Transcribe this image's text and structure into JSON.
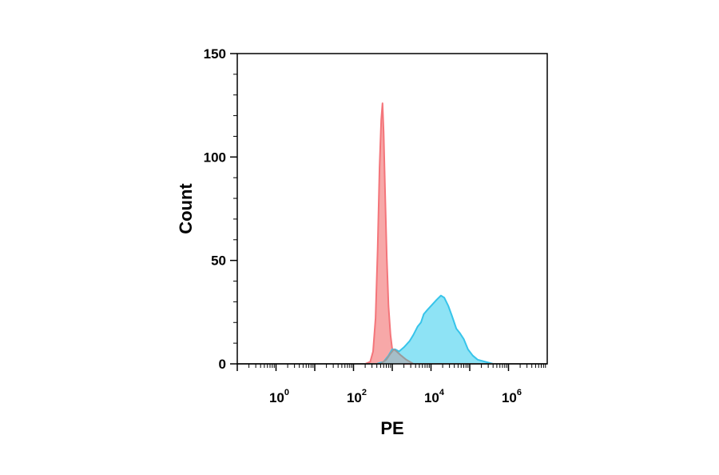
{
  "chart_data": {
    "type": "area",
    "xlabel": "PE",
    "ylabel": "Count",
    "xscale": "log",
    "xlim": [
      0.1,
      10000000
    ],
    "ylim": [
      0,
      150
    ],
    "y_ticks": [
      "0",
      "50",
      "100",
      "150"
    ],
    "x_ticks": [
      {
        "base": "10",
        "exp": "0",
        "value": 1
      },
      {
        "base": "10",
        "exp": "2",
        "value": 100
      },
      {
        "base": "10",
        "exp": "4",
        "value": 10000
      },
      {
        "base": "10",
        "exp": "6",
        "value": 1000000
      }
    ],
    "series": [
      {
        "color": "#f4757a",
        "fill": "#f7a8a8",
        "points": [
          [
            0.1,
            0
          ],
          [
            200,
            0
          ],
          [
            270,
            1
          ],
          [
            320,
            6
          ],
          [
            370,
            22
          ],
          [
            420,
            55
          ],
          [
            470,
            95
          ],
          [
            520,
            118
          ],
          [
            560,
            126
          ],
          [
            600,
            112
          ],
          [
            650,
            85
          ],
          [
            720,
            52
          ],
          [
            800,
            28
          ],
          [
            900,
            14
          ],
          [
            1000,
            7
          ],
          [
            1200,
            3
          ],
          [
            1500,
            1
          ],
          [
            2000,
            0
          ],
          [
            10000000,
            0
          ]
        ]
      },
      {
        "color": "#37c4ea",
        "fill": "#8ee3f5",
        "points": [
          [
            0.1,
            0
          ],
          [
            400,
            0
          ],
          [
            600,
            1
          ],
          [
            800,
            4
          ],
          [
            1000,
            7
          ],
          [
            1200,
            7
          ],
          [
            1500,
            6
          ],
          [
            2000,
            8
          ],
          [
            2800,
            11
          ],
          [
            3500,
            14
          ],
          [
            4500,
            18
          ],
          [
            5500,
            20
          ],
          [
            6500,
            24
          ],
          [
            8000,
            26
          ],
          [
            10000,
            28
          ],
          [
            14000,
            31
          ],
          [
            18000,
            33
          ],
          [
            22000,
            32
          ],
          [
            28000,
            28
          ],
          [
            35000,
            23
          ],
          [
            45000,
            17
          ],
          [
            55000,
            15
          ],
          [
            70000,
            12
          ],
          [
            90000,
            7
          ],
          [
            120000,
            4
          ],
          [
            160000,
            2
          ],
          [
            250000,
            1
          ],
          [
            400000,
            0
          ],
          [
            10000000,
            0
          ]
        ]
      },
      {
        "color": "#9a9a9a",
        "fill": "#a9b7c0",
        "points": [
          [
            0.1,
            0
          ],
          [
            500,
            0
          ],
          [
            700,
            2
          ],
          [
            900,
            5
          ],
          [
            1100,
            7
          ],
          [
            1300,
            6
          ],
          [
            1700,
            4
          ],
          [
            2300,
            2
          ],
          [
            3500,
            0
          ],
          [
            10000000,
            0
          ]
        ]
      }
    ]
  }
}
